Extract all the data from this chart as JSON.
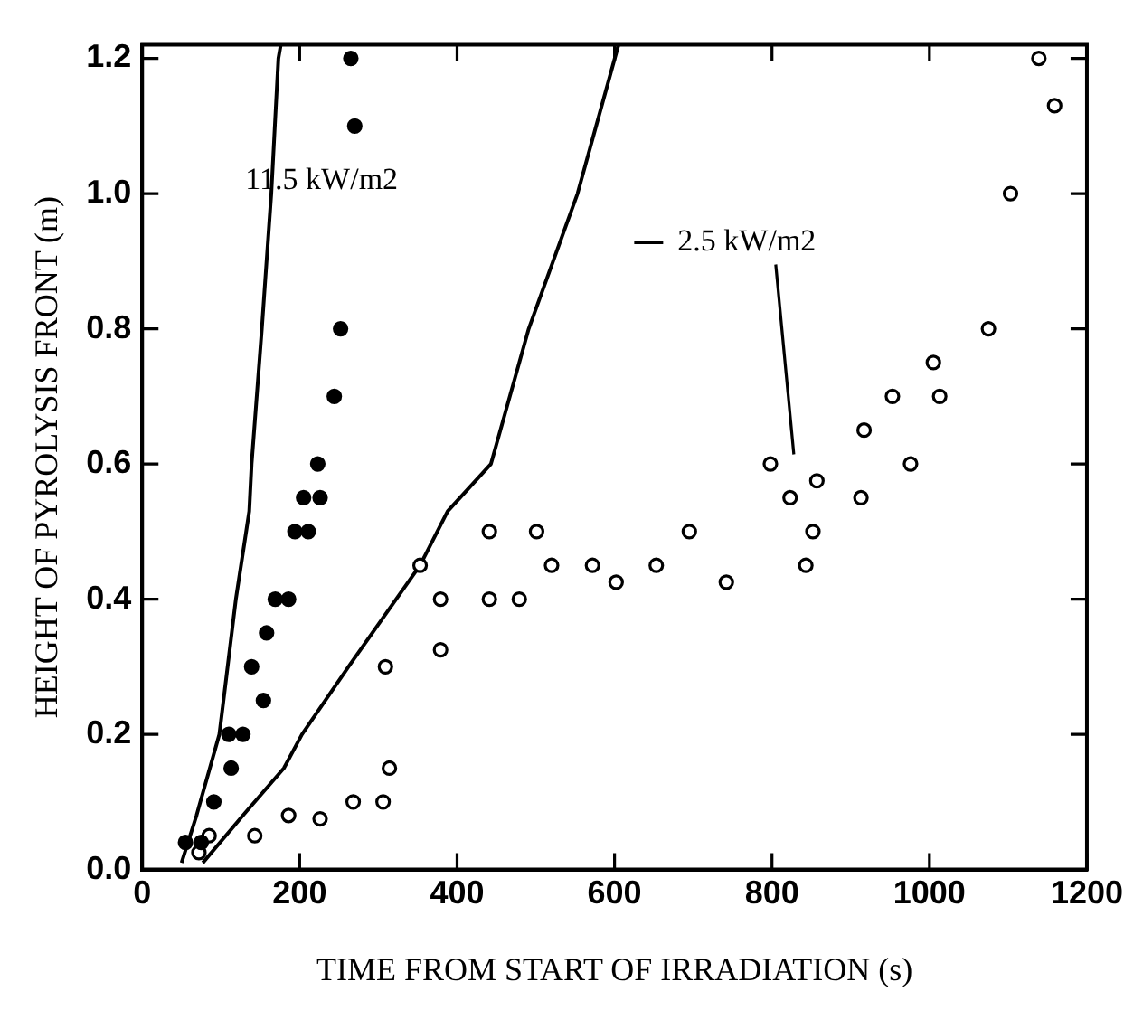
{
  "chart_data": {
    "type": "scatter",
    "xlabel": "TIME FROM START OF IRRADIATION (s)",
    "ylabel": "HEIGHT OF PYROLYSIS FRONT (m)",
    "xlim": [
      0,
      1200
    ],
    "xticks": [
      0,
      200,
      400,
      600,
      800,
      1000,
      1200
    ],
    "ylim": [
      0,
      1.22
    ],
    "yticks": [
      {
        "value": 0,
        "label": "0.0"
      },
      {
        "value": 0.2,
        "label": "0.2"
      },
      {
        "value": 0.4,
        "label": "0.4"
      },
      {
        "value": 0.6,
        "label": "0.6"
      },
      {
        "value": 0.8,
        "label": "0.8"
      },
      {
        "value": 1.0,
        "label": "1.0"
      },
      {
        "value": 1.2,
        "label": "1.2"
      }
    ],
    "grid": false,
    "legend": false,
    "annotations": [
      "11.5 kW/m2",
      "2.5 kW/m2"
    ],
    "series": [
      {
        "marker": "circle",
        "color": "#000000",
        "x": [
          55,
          75,
          91,
          113,
          110,
          128,
          139,
          154,
          158,
          169,
          186,
          194,
          211,
          205,
          226,
          223,
          244,
          252,
          270,
          265
        ],
        "values": [
          0.04,
          0.04,
          0.1,
          0.15,
          0.2,
          0.2,
          0.3,
          0.25,
          0.35,
          0.4,
          0.4,
          0.5,
          0.5,
          0.55,
          0.55,
          0.6,
          0.7,
          0.8,
          1.1,
          1.2
        ]
      },
      {
        "marker": "circle",
        "color": "#ffffff",
        "x": [
          72,
          85,
          143,
          186,
          226,
          268,
          306,
          314,
          309,
          353,
          379,
          379,
          441,
          441,
          479,
          501,
          520,
          572,
          602,
          653,
          695,
          742,
          798,
          823,
          857,
          852,
          843,
          913,
          917,
          976,
          953,
          1005,
          1013,
          1075,
          1103,
          1139,
          1159
        ],
        "values": [
          0.025,
          0.05,
          0.05,
          0.08,
          0.075,
          0.1,
          0.1,
          0.15,
          0.3,
          0.45,
          0.4,
          0.325,
          0.5,
          0.4,
          0.4,
          0.5,
          0.45,
          0.45,
          0.425,
          0.45,
          0.5,
          0.425,
          0.6,
          0.55,
          0.575,
          0.5,
          0.45,
          0.55,
          0.65,
          0.6,
          0.7,
          0.75,
          0.7,
          0.8,
          1.0,
          1.2,
          1.13
        ]
      },
      {
        "type": "line",
        "marker": "none",
        "color": "#000000",
        "x": [
          50,
          69,
          98,
          119,
          136,
          139,
          152,
          164,
          173,
          176
        ],
        "values": [
          0.01,
          0.08,
          0.2,
          0.4,
          0.53,
          0.6,
          0.8,
          1.0,
          1.2,
          1.22
        ]
      },
      {
        "type": "line",
        "marker": "none",
        "color": "#000000",
        "x": [
          77,
          128,
          180,
          203,
          262,
          353,
          388,
          443,
          491,
          553,
          605
        ],
        "values": [
          0.01,
          0.08,
          0.15,
          0.2,
          0.3,
          0.45,
          0.53,
          0.6,
          0.8,
          1.0,
          1.22
        ]
      }
    ]
  }
}
